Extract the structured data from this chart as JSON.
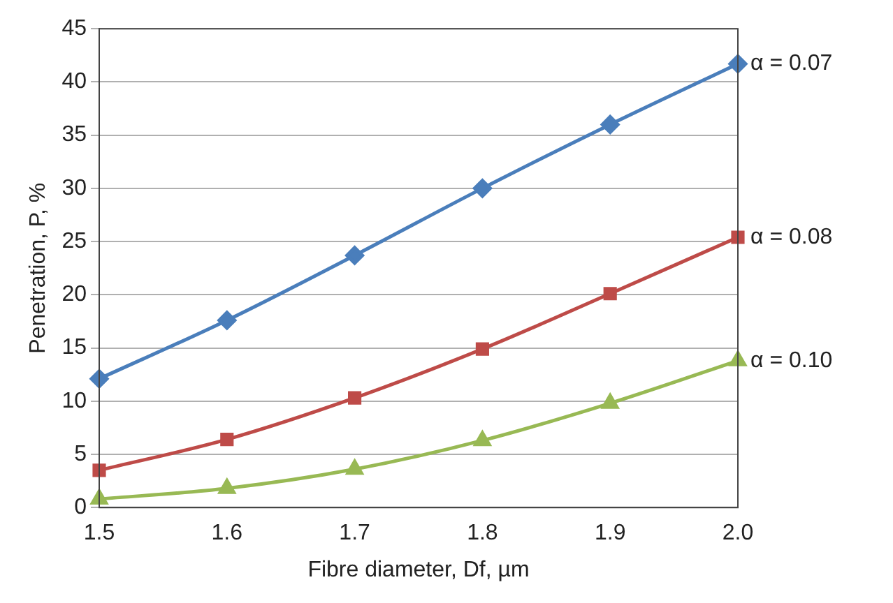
{
  "chart_data": {
    "type": "line",
    "xlabel": "Fibre diameter, Df, µm",
    "ylabel": "Penetration, P, %",
    "categories": [
      "1.5",
      "1.6",
      "1.7",
      "1.8",
      "1.9",
      "2.0"
    ],
    "series": [
      {
        "name": "α = 0.07",
        "color": "#4a7ebb",
        "marker": "diamond",
        "values": [
          12.1,
          17.6,
          23.7,
          30,
          36,
          41.7
        ]
      },
      {
        "name": "α = 0.08",
        "color": "#be4b48",
        "marker": "square",
        "values": [
          3.5,
          6.4,
          10.3,
          14.9,
          20.1,
          25.4
        ]
      },
      {
        "name": "α = 0.10",
        "color": "#98b954",
        "marker": "triangle",
        "values": [
          0.8,
          1.8,
          3.6,
          6.3,
          9.8,
          13.8
        ]
      }
    ],
    "ylim": [
      0,
      45
    ],
    "yticks": [
      0,
      5,
      10,
      15,
      20,
      25,
      30,
      35,
      40,
      45
    ],
    "grid": "y",
    "legend": false,
    "line_style": "solid"
  }
}
